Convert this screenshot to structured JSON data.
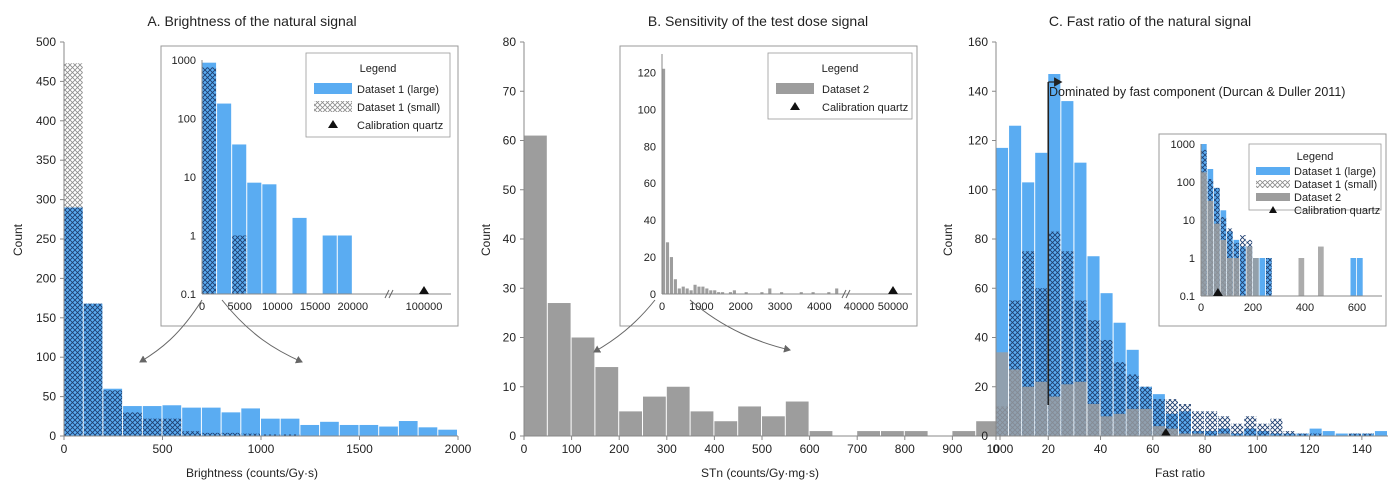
{
  "colors": {
    "blue": "#5aacf2",
    "blue_edge": "#3d8fd6",
    "gray": "#9d9d9d",
    "dark": "#222222"
  },
  "chart_data": [
    {
      "type": "bar",
      "title": "A. Brightness of the natural signal",
      "xlabel": "Brightness (counts/Gy·s)",
      "ylabel": "Count",
      "xlim": [
        0,
        2000
      ],
      "ylim": [
        0,
        500
      ],
      "xticks": [
        0,
        500,
        1000,
        1500,
        2000
      ],
      "yticks": [
        0,
        50,
        100,
        150,
        200,
        250,
        300,
        350,
        400,
        450,
        500
      ],
      "bin_width": 100,
      "series": [
        {
          "name": "Dataset 1 (small)",
          "pattern": "crosshatch",
          "values": [
            473,
            0,
            0,
            0,
            0,
            0,
            0,
            0,
            0,
            0,
            0,
            0,
            0,
            0,
            0,
            0,
            0,
            0,
            0,
            0
          ]
        },
        {
          "name": "Dataset 1 (large)",
          "pattern": "solid",
          "values": [
            290,
            168,
            60,
            38,
            38,
            39,
            36,
            36,
            30,
            35,
            22,
            22,
            14,
            18,
            14,
            14,
            12,
            19,
            11,
            8
          ]
        },
        {
          "name": "Dataset 1 (small) overlap",
          "pattern": "crosshatch",
          "values": [
            290,
            168,
            58,
            30,
            22,
            22,
            6,
            4,
            4,
            3,
            2,
            2,
            0,
            0,
            0,
            0,
            0,
            0,
            0,
            0
          ]
        }
      ],
      "inset": {
        "scale": "log",
        "yticks": [
          "1000",
          "100",
          "10",
          "1",
          "0.1"
        ],
        "xticks": [
          "0",
          "5000",
          "10000",
          "15000",
          "20000",
          "100000"
        ],
        "legend": {
          "title": "Legend",
          "entries": [
            "Dataset 1 (large)",
            "Dataset 1 (small)",
            "Calibration quartz"
          ]
        },
        "large": [
          [
            0,
            2000,
            900
          ],
          [
            2000,
            4000,
            180
          ],
          [
            4000,
            6000,
            36
          ],
          [
            6000,
            8000,
            8
          ],
          [
            8000,
            10000,
            7.5
          ],
          [
            12000,
            14000,
            2
          ],
          [
            16000,
            18000,
            1
          ],
          [
            18000,
            20000,
            1
          ]
        ],
        "small": [
          [
            0,
            2000,
            750
          ],
          [
            4000,
            6000,
            1
          ]
        ],
        "calibration_x": 100000
      }
    },
    {
      "type": "bar",
      "title": "B. Sensitivity of the test dose signal",
      "xlabel": "STn (counts/Gy·mg·s)",
      "ylabel": "Count",
      "xlim": [
        0,
        1000
      ],
      "ylim": [
        0,
        80
      ],
      "xticks": [
        0,
        100,
        200,
        300,
        400,
        500,
        600,
        700,
        800,
        900,
        1000
      ],
      "yticks": [
        0,
        10,
        20,
        30,
        40,
        50,
        60,
        70,
        80
      ],
      "bin_width": 50,
      "series": [
        {
          "name": "Dataset 2",
          "values": [
            61,
            27,
            20,
            14,
            5,
            8,
            10,
            5,
            3,
            6,
            4,
            7,
            1,
            0,
            1,
            1,
            1,
            0,
            1,
            3
          ]
        }
      ],
      "inset": {
        "yticks": [
          "0",
          "20",
          "40",
          "60",
          "80",
          "100",
          "120"
        ],
        "xticks": [
          "0",
          "1000",
          "2000",
          "3000",
          "4000",
          "40000",
          "50000"
        ],
        "legend": {
          "title": "Legend",
          "entries": [
            "Dataset 2",
            "Calibration quartz"
          ]
        },
        "bins": [
          [
            0,
            100,
            122
          ],
          [
            100,
            200,
            28
          ],
          [
            200,
            300,
            20
          ],
          [
            300,
            400,
            8
          ],
          [
            400,
            500,
            3
          ],
          [
            500,
            600,
            4
          ],
          [
            600,
            700,
            3
          ],
          [
            700,
            800,
            2
          ],
          [
            800,
            900,
            5
          ],
          [
            900,
            1000,
            4
          ],
          [
            1000,
            1100,
            4
          ],
          [
            1100,
            1200,
            3
          ],
          [
            1200,
            1300,
            2
          ],
          [
            1300,
            1400,
            2
          ],
          [
            1400,
            1500,
            1
          ],
          [
            1500,
            1600,
            1
          ],
          [
            1700,
            1800,
            1
          ],
          [
            1800,
            1900,
            2
          ],
          [
            2100,
            2200,
            1
          ],
          [
            2500,
            2600,
            1
          ],
          [
            2700,
            2800,
            3
          ],
          [
            3000,
            3100,
            1
          ],
          [
            3500,
            3600,
            1
          ],
          [
            3800,
            3900,
            1
          ],
          [
            4200,
            4300,
            1
          ],
          [
            4400,
            4500,
            3
          ]
        ],
        "calibration_x": 50000
      }
    },
    {
      "type": "bar",
      "title": "C. Fast ratio of the natural signal",
      "xlabel": "Fast ratio",
      "ylabel": "Count",
      "xlim": [
        0,
        150
      ],
      "ylim": [
        0,
        160
      ],
      "xticks": [
        0,
        20,
        40,
        60,
        80,
        100,
        120,
        140
      ],
      "yticks": [
        0,
        20,
        40,
        60,
        80,
        100,
        120,
        140,
        160
      ],
      "bin_width": 5,
      "series": [
        {
          "name": "Dataset 1 (large)",
          "pattern": "solid",
          "values": [
            117,
            126,
            103,
            115,
            147,
            136,
            111,
            73,
            58,
            46,
            35,
            20,
            17,
            9,
            10,
            2,
            2,
            3,
            1,
            3,
            2,
            1,
            1,
            1,
            3,
            2,
            1,
            1,
            1,
            2
          ]
        },
        {
          "name": "Dataset 1 (small)",
          "pattern": "crosshatch",
          "values": [
            12,
            55,
            75,
            60,
            83,
            75,
            55,
            47,
            39,
            30,
            25,
            20,
            15,
            15,
            13,
            10,
            10,
            8,
            5,
            8,
            5,
            7,
            2,
            1,
            1,
            0,
            0,
            1,
            1,
            0
          ]
        },
        {
          "name": "Dataset 2",
          "pattern": "solid",
          "values": [
            34,
            27,
            20,
            22,
            16,
            21,
            22,
            13,
            8,
            9,
            11,
            11,
            4,
            3,
            1,
            1,
            0,
            1,
            0,
            0,
            0,
            0,
            0,
            0,
            0,
            0,
            0,
            0,
            0,
            0
          ]
        }
      ],
      "annotation": "Dominated by fast component (Durcan & Duller 2011)",
      "threshold_x": 20,
      "calibration_x": 65,
      "inset": {
        "scale": "log",
        "yticks": [
          "1000",
          "100",
          "10",
          "1",
          "0.1"
        ],
        "xticks": [
          "0",
          "200",
          "400",
          "600"
        ],
        "legend": {
          "title": "Legend",
          "entries": [
            "Dataset 1 (large)",
            "Dataset 1 (small)",
            "Dataset 2",
            "Calibration quartz"
          ]
        },
        "large": [
          [
            0,
            25,
            1000
          ],
          [
            25,
            50,
            220
          ],
          [
            50,
            75,
            70
          ],
          [
            75,
            100,
            18
          ],
          [
            100,
            125,
            5
          ],
          [
            125,
            150,
            3
          ],
          [
            150,
            175,
            2
          ],
          [
            175,
            200,
            2
          ],
          [
            200,
            225,
            1
          ],
          [
            225,
            250,
            1
          ],
          [
            250,
            275,
            1
          ],
          [
            575,
            600,
            1
          ],
          [
            600,
            625,
            1
          ]
        ],
        "small": [
          [
            0,
            25,
            700
          ],
          [
            25,
            50,
            120
          ],
          [
            50,
            75,
            70
          ],
          [
            75,
            100,
            12
          ],
          [
            100,
            125,
            6
          ],
          [
            125,
            150,
            2.5
          ],
          [
            150,
            175,
            4
          ],
          [
            175,
            200,
            3
          ],
          [
            250,
            275,
            1
          ]
        ],
        "d2": [
          [
            0,
            25,
            180
          ],
          [
            25,
            50,
            32
          ],
          [
            50,
            75,
            8
          ],
          [
            75,
            100,
            3
          ],
          [
            100,
            125,
            1
          ],
          [
            125,
            150,
            1
          ],
          [
            175,
            200,
            2
          ],
          [
            200,
            225,
            1
          ],
          [
            375,
            400,
            1
          ],
          [
            450,
            475,
            2
          ]
        ],
        "calibration_x": 65
      }
    }
  ]
}
